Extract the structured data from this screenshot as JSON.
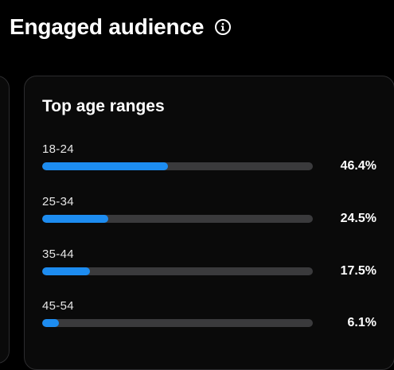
{
  "header": {
    "title": "Engaged audience",
    "info_icon": "info-icon"
  },
  "card": {
    "title": "Top age ranges",
    "ranges": [
      {
        "label": "18-24",
        "value": "46.4%",
        "fraction": 0.464
      },
      {
        "label": "25-34",
        "value": "24.5%",
        "fraction": 0.245
      },
      {
        "label": "35-44",
        "value": "17.5%",
        "fraction": 0.175
      },
      {
        "label": "45-54",
        "value": "6.1%",
        "fraction": 0.061
      }
    ]
  },
  "colors": {
    "background": "#000000",
    "card_background": "#0a0a0a",
    "bar_fill": "#1d8cf0",
    "bar_track": "#3a3a3c",
    "text": "#ffffff"
  }
}
